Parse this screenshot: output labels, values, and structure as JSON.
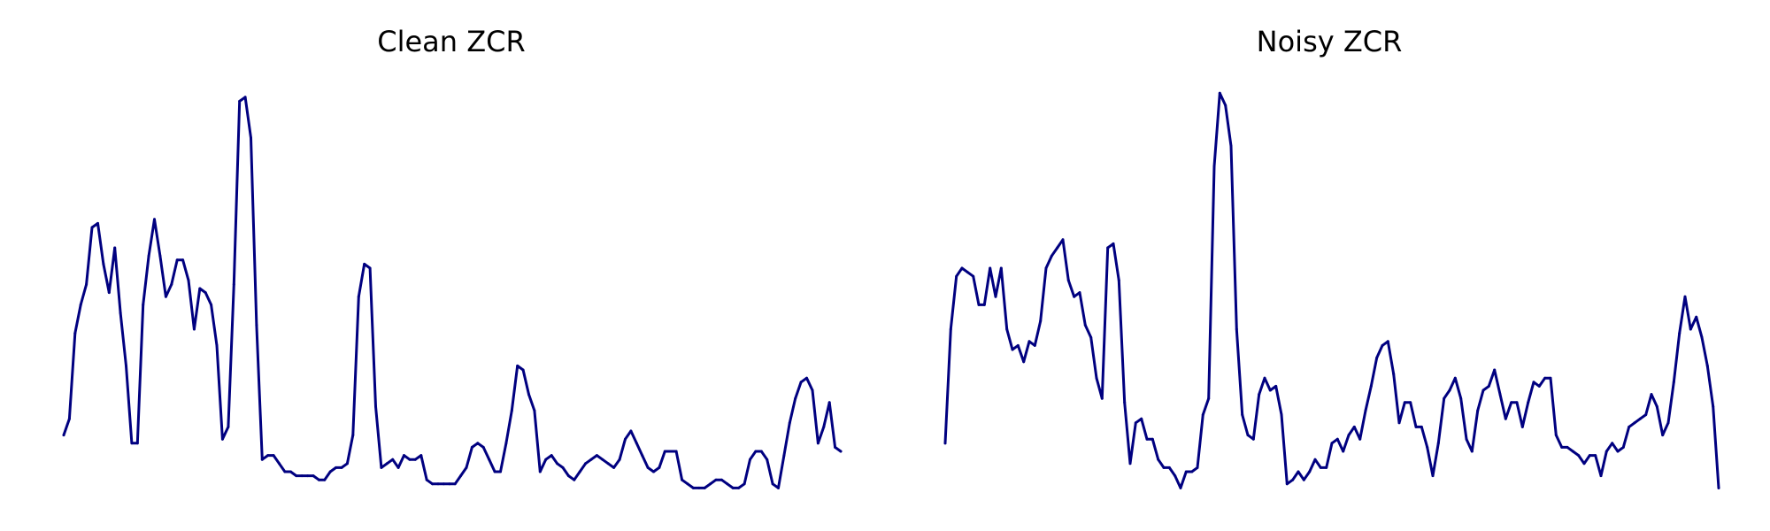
{
  "figure": {
    "line_color": "#000080",
    "background": "#ffffff"
  },
  "chart_data": [
    {
      "type": "line",
      "title": "Clean ZCR",
      "xlabel": "",
      "ylabel": "",
      "axes_visible": false,
      "grid": false,
      "ylim": [
        0,
        100
      ],
      "series": [
        {
          "values": [
            14,
            18,
            39,
            46,
            51,
            65,
            66,
            56,
            49,
            60,
            44,
            31,
            12,
            12,
            46,
            58,
            67,
            58,
            48,
            51,
            57,
            57,
            52,
            40,
            50,
            49,
            46,
            36,
            13,
            16,
            51,
            96,
            97,
            87,
            41,
            8,
            9,
            9,
            7,
            5,
            5,
            4,
            4,
            4,
            4,
            3,
            3,
            5,
            6,
            6,
            7,
            14,
            48,
            56,
            55,
            21,
            6,
            7,
            8,
            6,
            9,
            8,
            8,
            9,
            3,
            2,
            2,
            2,
            2,
            2,
            4,
            6,
            11,
            12,
            11,
            8,
            5,
            5,
            12,
            20,
            31,
            30,
            24,
            20,
            5,
            8,
            9,
            7,
            6,
            4,
            3,
            5,
            7,
            8,
            9,
            8,
            7,
            6,
            8,
            13,
            15,
            12,
            9,
            6,
            5,
            6,
            10,
            10,
            10,
            3,
            2,
            1,
            1,
            1,
            2,
            3,
            3,
            2,
            1,
            1,
            2,
            8,
            10,
            10,
            8,
            2,
            1,
            9,
            17,
            23,
            27,
            28,
            25,
            12,
            16,
            22,
            11,
            10
          ]
        }
      ]
    },
    {
      "type": "line",
      "title": "Noisy ZCR",
      "xlabel": "",
      "ylabel": "",
      "axes_visible": false,
      "grid": false,
      "ylim": [
        0,
        100
      ],
      "series": [
        {
          "values": [
            12,
            40,
            53,
            55,
            54,
            53,
            46,
            46,
            55,
            48,
            55,
            40,
            35,
            36,
            32,
            37,
            36,
            42,
            55,
            58,
            60,
            62,
            52,
            48,
            49,
            41,
            38,
            28,
            23,
            60,
            61,
            52,
            22,
            7,
            17,
            18,
            13,
            13,
            8,
            6,
            6,
            4,
            1,
            5,
            5,
            6,
            19,
            23,
            80,
            98,
            95,
            85,
            40,
            19,
            14,
            13,
            24,
            28,
            25,
            26,
            19,
            2,
            3,
            5,
            3,
            5,
            8,
            6,
            6,
            12,
            13,
            10,
            14,
            16,
            13,
            20,
            26,
            33,
            36,
            37,
            29,
            17,
            22,
            22,
            16,
            16,
            11,
            4,
            12,
            23,
            25,
            28,
            23,
            13,
            10,
            20,
            25,
            26,
            30,
            24,
            18,
            22,
            22,
            16,
            22,
            27,
            26,
            28,
            28,
            14,
            11,
            11,
            10,
            9,
            7,
            9,
            9,
            4,
            10,
            12,
            10,
            11,
            16,
            17,
            18,
            19,
            24,
            21,
            14,
            17,
            27,
            39,
            48,
            40,
            43,
            38,
            31,
            21,
            1
          ]
        }
      ]
    }
  ]
}
